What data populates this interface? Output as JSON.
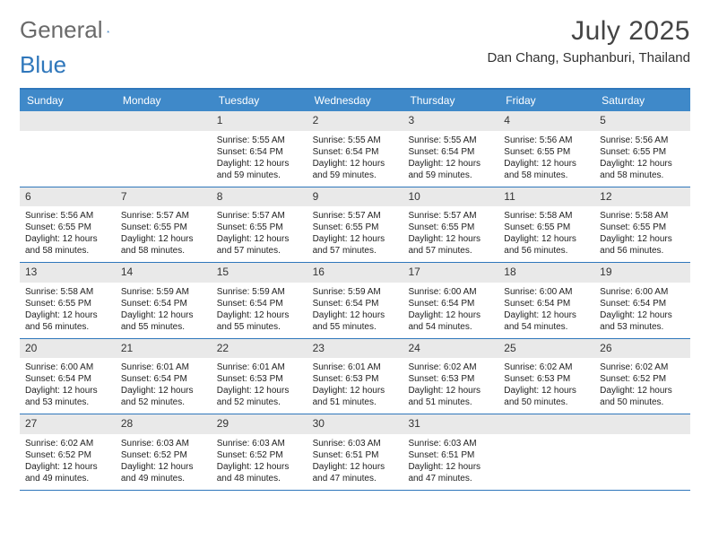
{
  "logo": {
    "text1": "General",
    "text2": "Blue"
  },
  "header": {
    "month_title": "July 2025",
    "location": "Dan Chang, Suphanburi, Thailand"
  },
  "colors": {
    "brand_blue": "#3f89c9",
    "rule_blue": "#2f77bb",
    "daynum_bg": "#e9e9e9",
    "text_gray": "#444444"
  },
  "day_labels": [
    "Sunday",
    "Monday",
    "Tuesday",
    "Wednesday",
    "Thursday",
    "Friday",
    "Saturday"
  ],
  "weeks": [
    [
      {
        "n": "",
        "sr": "",
        "ss": "",
        "dl": ""
      },
      {
        "n": "",
        "sr": "",
        "ss": "",
        "dl": ""
      },
      {
        "n": "1",
        "sr": "Sunrise: 5:55 AM",
        "ss": "Sunset: 6:54 PM",
        "dl": "Daylight: 12 hours and 59 minutes."
      },
      {
        "n": "2",
        "sr": "Sunrise: 5:55 AM",
        "ss": "Sunset: 6:54 PM",
        "dl": "Daylight: 12 hours and 59 minutes."
      },
      {
        "n": "3",
        "sr": "Sunrise: 5:55 AM",
        "ss": "Sunset: 6:54 PM",
        "dl": "Daylight: 12 hours and 59 minutes."
      },
      {
        "n": "4",
        "sr": "Sunrise: 5:56 AM",
        "ss": "Sunset: 6:55 PM",
        "dl": "Daylight: 12 hours and 58 minutes."
      },
      {
        "n": "5",
        "sr": "Sunrise: 5:56 AM",
        "ss": "Sunset: 6:55 PM",
        "dl": "Daylight: 12 hours and 58 minutes."
      }
    ],
    [
      {
        "n": "6",
        "sr": "Sunrise: 5:56 AM",
        "ss": "Sunset: 6:55 PM",
        "dl": "Daylight: 12 hours and 58 minutes."
      },
      {
        "n": "7",
        "sr": "Sunrise: 5:57 AM",
        "ss": "Sunset: 6:55 PM",
        "dl": "Daylight: 12 hours and 58 minutes."
      },
      {
        "n": "8",
        "sr": "Sunrise: 5:57 AM",
        "ss": "Sunset: 6:55 PM",
        "dl": "Daylight: 12 hours and 57 minutes."
      },
      {
        "n": "9",
        "sr": "Sunrise: 5:57 AM",
        "ss": "Sunset: 6:55 PM",
        "dl": "Daylight: 12 hours and 57 minutes."
      },
      {
        "n": "10",
        "sr": "Sunrise: 5:57 AM",
        "ss": "Sunset: 6:55 PM",
        "dl": "Daylight: 12 hours and 57 minutes."
      },
      {
        "n": "11",
        "sr": "Sunrise: 5:58 AM",
        "ss": "Sunset: 6:55 PM",
        "dl": "Daylight: 12 hours and 56 minutes."
      },
      {
        "n": "12",
        "sr": "Sunrise: 5:58 AM",
        "ss": "Sunset: 6:55 PM",
        "dl": "Daylight: 12 hours and 56 minutes."
      }
    ],
    [
      {
        "n": "13",
        "sr": "Sunrise: 5:58 AM",
        "ss": "Sunset: 6:55 PM",
        "dl": "Daylight: 12 hours and 56 minutes."
      },
      {
        "n": "14",
        "sr": "Sunrise: 5:59 AM",
        "ss": "Sunset: 6:54 PM",
        "dl": "Daylight: 12 hours and 55 minutes."
      },
      {
        "n": "15",
        "sr": "Sunrise: 5:59 AM",
        "ss": "Sunset: 6:54 PM",
        "dl": "Daylight: 12 hours and 55 minutes."
      },
      {
        "n": "16",
        "sr": "Sunrise: 5:59 AM",
        "ss": "Sunset: 6:54 PM",
        "dl": "Daylight: 12 hours and 55 minutes."
      },
      {
        "n": "17",
        "sr": "Sunrise: 6:00 AM",
        "ss": "Sunset: 6:54 PM",
        "dl": "Daylight: 12 hours and 54 minutes."
      },
      {
        "n": "18",
        "sr": "Sunrise: 6:00 AM",
        "ss": "Sunset: 6:54 PM",
        "dl": "Daylight: 12 hours and 54 minutes."
      },
      {
        "n": "19",
        "sr": "Sunrise: 6:00 AM",
        "ss": "Sunset: 6:54 PM",
        "dl": "Daylight: 12 hours and 53 minutes."
      }
    ],
    [
      {
        "n": "20",
        "sr": "Sunrise: 6:00 AM",
        "ss": "Sunset: 6:54 PM",
        "dl": "Daylight: 12 hours and 53 minutes."
      },
      {
        "n": "21",
        "sr": "Sunrise: 6:01 AM",
        "ss": "Sunset: 6:54 PM",
        "dl": "Daylight: 12 hours and 52 minutes."
      },
      {
        "n": "22",
        "sr": "Sunrise: 6:01 AM",
        "ss": "Sunset: 6:53 PM",
        "dl": "Daylight: 12 hours and 52 minutes."
      },
      {
        "n": "23",
        "sr": "Sunrise: 6:01 AM",
        "ss": "Sunset: 6:53 PM",
        "dl": "Daylight: 12 hours and 51 minutes."
      },
      {
        "n": "24",
        "sr": "Sunrise: 6:02 AM",
        "ss": "Sunset: 6:53 PM",
        "dl": "Daylight: 12 hours and 51 minutes."
      },
      {
        "n": "25",
        "sr": "Sunrise: 6:02 AM",
        "ss": "Sunset: 6:53 PM",
        "dl": "Daylight: 12 hours and 50 minutes."
      },
      {
        "n": "26",
        "sr": "Sunrise: 6:02 AM",
        "ss": "Sunset: 6:52 PM",
        "dl": "Daylight: 12 hours and 50 minutes."
      }
    ],
    [
      {
        "n": "27",
        "sr": "Sunrise: 6:02 AM",
        "ss": "Sunset: 6:52 PM",
        "dl": "Daylight: 12 hours and 49 minutes."
      },
      {
        "n": "28",
        "sr": "Sunrise: 6:03 AM",
        "ss": "Sunset: 6:52 PM",
        "dl": "Daylight: 12 hours and 49 minutes."
      },
      {
        "n": "29",
        "sr": "Sunrise: 6:03 AM",
        "ss": "Sunset: 6:52 PM",
        "dl": "Daylight: 12 hours and 48 minutes."
      },
      {
        "n": "30",
        "sr": "Sunrise: 6:03 AM",
        "ss": "Sunset: 6:51 PM",
        "dl": "Daylight: 12 hours and 47 minutes."
      },
      {
        "n": "31",
        "sr": "Sunrise: 6:03 AM",
        "ss": "Sunset: 6:51 PM",
        "dl": "Daylight: 12 hours and 47 minutes."
      },
      {
        "n": "",
        "sr": "",
        "ss": "",
        "dl": ""
      },
      {
        "n": "",
        "sr": "",
        "ss": "",
        "dl": ""
      }
    ]
  ]
}
